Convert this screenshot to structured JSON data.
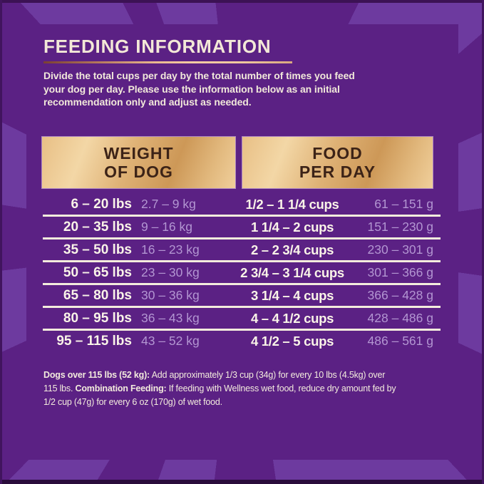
{
  "header": {
    "title": "FEEDING INFORMATION"
  },
  "intro": {
    "lines": [
      "Divide the total cups per day by the total number of times you feed",
      "your dog per day. Please use the information below as an initial",
      "recommendation only and adjust as needed."
    ]
  },
  "table": {
    "headers": [
      {
        "line1": "WEIGHT",
        "line2": "OF DOG"
      },
      {
        "line1": "FOOD",
        "line2": "PER DAY"
      }
    ],
    "rows": [
      {
        "lbs": "6 – 20 lbs",
        "kg": "2.7 – 9 kg",
        "cups": "1/2 – 1 1/4 cups",
        "grams": "61 – 151 g"
      },
      {
        "lbs": "20 – 35 lbs",
        "kg": "9 – 16 kg",
        "cups": "1 1/4 – 2 cups",
        "grams": "151 – 230 g"
      },
      {
        "lbs": "35 – 50 lbs",
        "kg": "16 – 23 kg",
        "cups": "2 – 2 3/4 cups",
        "grams": "230 – 301 g"
      },
      {
        "lbs": "50 – 65 lbs",
        "kg": "23 – 30 kg",
        "cups": "2 3/4 – 3 1/4 cups",
        "grams": "301 – 366 g"
      },
      {
        "lbs": "65 – 80 lbs",
        "kg": "30 – 36 kg",
        "cups": "3 1/4 – 4 cups",
        "grams": "366 – 428 g"
      },
      {
        "lbs": "80 – 95 lbs",
        "kg": "36 – 43 kg",
        "cups": "4 – 4 1/2 cups",
        "grams": "428 – 486 g"
      },
      {
        "lbs": "95 – 115 lbs",
        "kg": "43 – 52 kg",
        "cups": "4 1/2 – 5 cups",
        "grams": "486 – 561 g"
      }
    ]
  },
  "footnote": {
    "line1_bold": "Dogs over 115 lbs (52 kg):",
    "line1_rest": " Add approximately 1/3 cup (34g) for every 10 lbs (4.5kg) over",
    "line2_start": "115 lbs. ",
    "line2_bold": "Combination Feeding:",
    "line2_rest": " If feeding with Wellness wet food, reduce dry amount fed by",
    "line3": "1/2 cup (47g) for every 6 oz (170g) of wet food."
  },
  "colors": {
    "background_purple": "#5b2184",
    "ray_purple": "#6d3a9f",
    "edge_dark_purple": "#3c1254",
    "cream_text": "#f3e8d7",
    "lavender_text": "#b396d2",
    "gold_plate": "#e2b97e",
    "plate_text_brown": "#3c2317",
    "rule_copper": "#e9b88f"
  }
}
